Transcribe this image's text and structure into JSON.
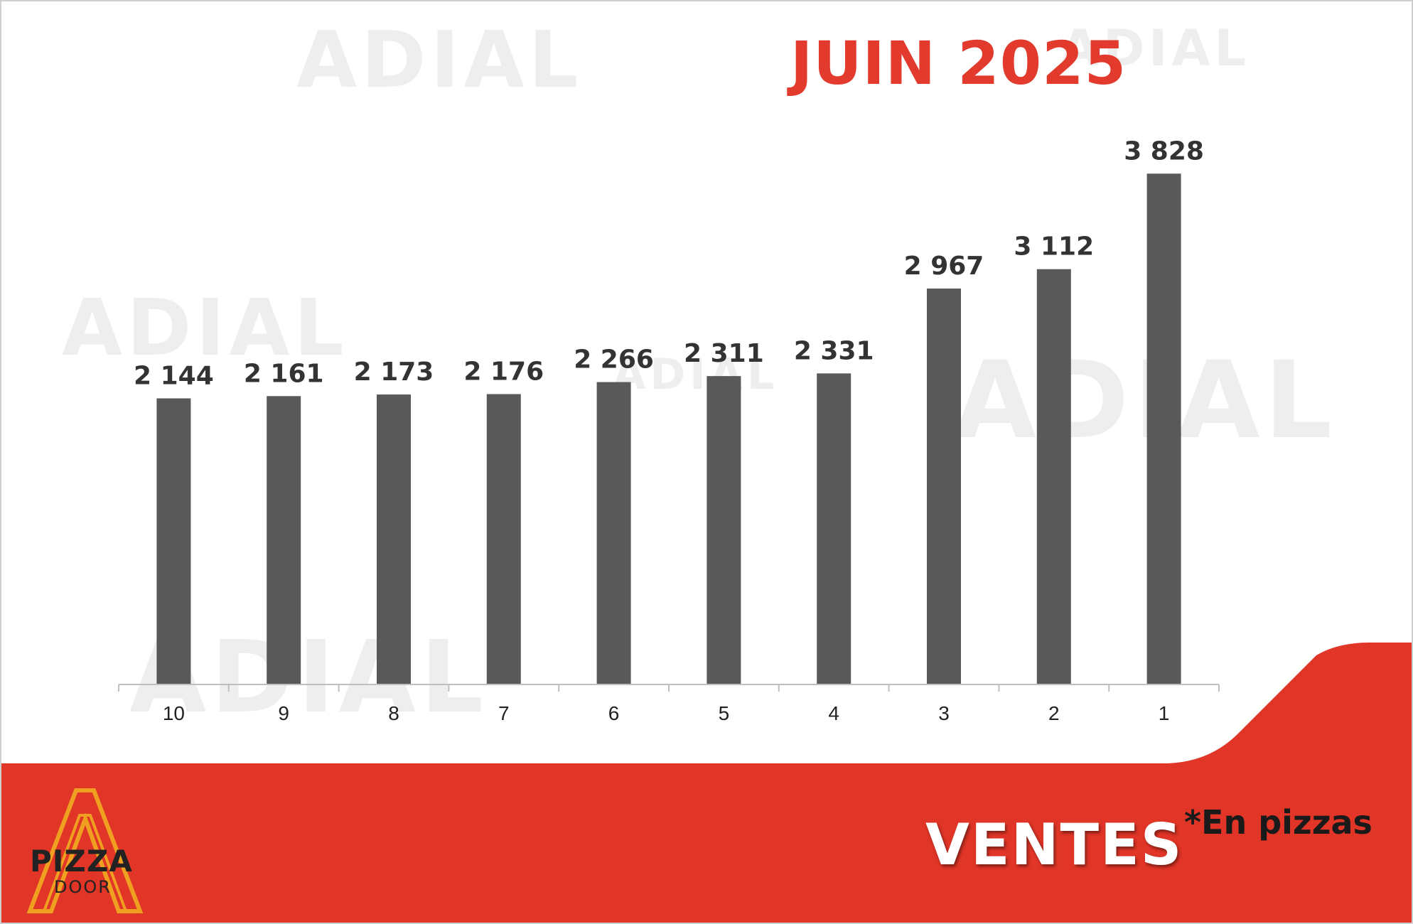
{
  "title": "JUIN 2025",
  "footer": {
    "title": "VENTES",
    "note": "*En pizzas"
  },
  "logo": {
    "line1": "PIZZA",
    "line2": "DOOR"
  },
  "watermark": "ADIAL",
  "colors": {
    "accent": "#e23b2e",
    "bar": "#595959",
    "background": "#ffffff"
  },
  "chart_data": {
    "type": "bar",
    "categories": [
      "10",
      "9",
      "8",
      "7",
      "6",
      "5",
      "4",
      "3",
      "2",
      "1"
    ],
    "values": [
      2144,
      2161,
      2173,
      2176,
      2266,
      2311,
      2331,
      2967,
      3112,
      3828
    ],
    "value_labels": [
      "2 144",
      "2 161",
      "2 173",
      "2 176",
      "2 266",
      "2 311",
      "2 331",
      "2 967",
      "3 112",
      "3 828"
    ],
    "ylim": [
      0,
      4000
    ],
    "grid": false,
    "legend": "none"
  }
}
